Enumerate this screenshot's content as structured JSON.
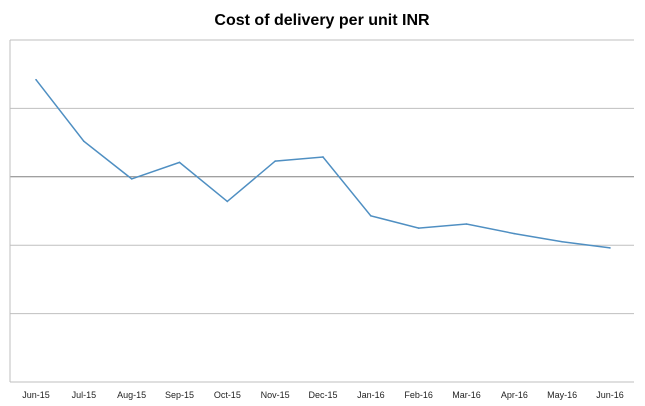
{
  "chart_data": {
    "type": "line",
    "title": "Cost of delivery per unit INR",
    "xlabel": "",
    "ylabel": "",
    "categories": [
      "Jun-15",
      "Jul-15",
      "Aug-15",
      "Sep-15",
      "Oct-15",
      "Nov-15",
      "Dec-15",
      "Jan-16",
      "Feb-16",
      "Mar-16",
      "Apr-16",
      "May-16",
      "Jun-16"
    ],
    "series": [
      {
        "values": [
          4.42,
          3.52,
          2.97,
          3.21,
          2.64,
          3.23,
          3.29,
          2.43,
          2.25,
          2.31,
          2.17,
          2.05,
          1.96
        ]
      }
    ],
    "ylim": [
      0,
      5
    ],
    "y_gridlines": [
      1,
      2,
      3,
      4,
      5
    ],
    "y_tick_labels_shown": false,
    "grid": true,
    "legend": "none",
    "colors": {
      "line": "#4f8fc2",
      "grid": "#bfbfbf",
      "axis_mid": "#808080"
    }
  }
}
